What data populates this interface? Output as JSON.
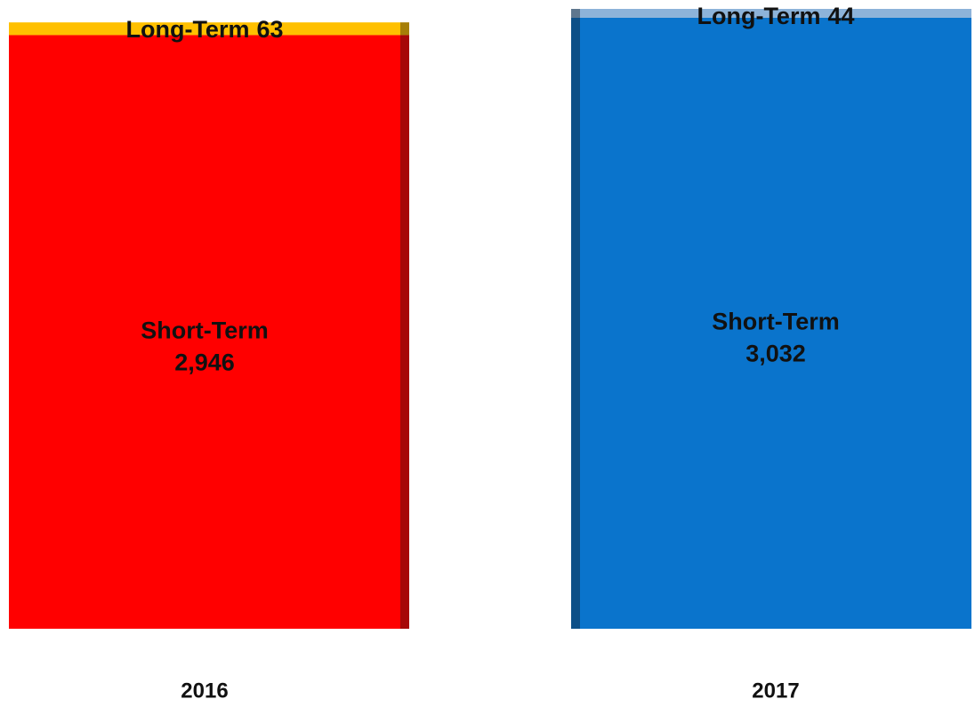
{
  "chart_data": {
    "type": "stacked-bar-3d",
    "categories": [
      "2016",
      "2017"
    ],
    "series": [
      {
        "name": "Short-Term",
        "colors": [
          "#ff0000",
          "#0a74cc"
        ],
        "values": [
          2946,
          3032
        ],
        "value_labels": [
          "2,946",
          "3,032"
        ]
      },
      {
        "name": "Long-Term",
        "colors": [
          "#ffc000",
          "#8db3d9"
        ],
        "values": [
          63,
          44
        ]
      }
    ]
  }
}
